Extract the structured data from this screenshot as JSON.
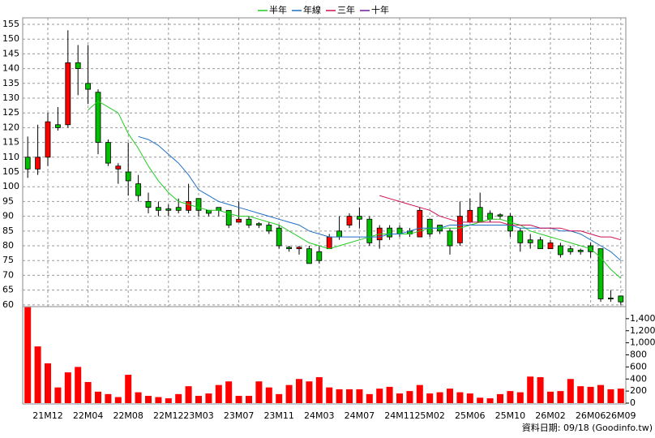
{
  "chart_data": {
    "type": "candlestick",
    "categories": [
      null,
      null,
      "21M12",
      null,
      null,
      null,
      "22M04",
      null,
      null,
      null,
      "22M08",
      null,
      null,
      null,
      "22M12",
      null,
      null,
      "23M03",
      null,
      null,
      null,
      "23M07",
      null,
      null,
      null,
      "23M11",
      null,
      null,
      null,
      "24M03",
      null,
      null,
      null,
      "24M07",
      null,
      null,
      null,
      "24M11",
      null,
      null,
      "25M02",
      null,
      null,
      null,
      "25M06",
      null,
      null,
      null,
      "25M10",
      null,
      null,
      null,
      "26M02",
      null,
      null,
      null,
      "26M06",
      null,
      null,
      "26M09"
    ],
    "open": [
      110,
      106,
      110,
      121,
      121,
      142,
      135,
      132,
      115,
      106,
      105,
      101,
      95,
      93,
      92.5,
      93,
      92,
      96,
      92,
      93,
      92,
      88,
      89,
      87.5,
      87,
      86,
      79.5,
      79,
      79,
      78,
      79,
      85,
      87,
      90,
      89,
      82,
      86,
      86,
      85,
      83,
      89,
      87,
      85,
      81,
      88,
      93,
      91,
      90.5,
      90,
      85,
      82,
      82,
      79,
      80,
      79,
      78.5,
      80,
      79,
      62.3,
      63
    ],
    "high": [
      117,
      121,
      125,
      127,
      153,
      148,
      148,
      133,
      116,
      108,
      115,
      104,
      98,
      95,
      94,
      96,
      101,
      96,
      92,
      93,
      92,
      95,
      90,
      88,
      88,
      87,
      80,
      80,
      80,
      80,
      84,
      90,
      91,
      93,
      90,
      87,
      87,
      87,
      86,
      93,
      89,
      87,
      86,
      95,
      96,
      98,
      92,
      91,
      91,
      86,
      84,
      83,
      82,
      81,
      80,
      79,
      81,
      79,
      65,
      63
    ],
    "low": [
      103,
      104,
      107,
      119,
      120,
      131,
      128,
      111,
      107,
      101,
      97,
      95,
      91,
      90,
      90,
      91,
      91,
      90,
      90,
      90,
      86,
      88,
      86,
      86,
      84,
      79,
      78,
      77,
      74,
      74,
      79,
      82,
      86,
      86,
      80,
      79,
      82,
      83,
      83,
      83,
      83,
      84,
      77,
      80,
      88,
      88,
      88,
      89,
      83,
      78,
      79,
      79,
      79,
      76,
      77,
      77,
      76,
      61,
      61,
      60
    ],
    "close": [
      106,
      110,
      122,
      120,
      142,
      140,
      133,
      115,
      108,
      107,
      102,
      97,
      93,
      92,
      92,
      92,
      95,
      92,
      91,
      92,
      87,
      89,
      87,
      87,
      85,
      80,
      79,
      79.5,
      74,
      75,
      83,
      83,
      90,
      89,
      81,
      86,
      83,
      84,
      84,
      92,
      84,
      85,
      80,
      90,
      92,
      88,
      89,
      90,
      85,
      81,
      81,
      79,
      81,
      77,
      78,
      78,
      78,
      62,
      62,
      61
    ],
    "up_color": "#ff0000",
    "down_color": "#00c000",
    "series": [
      {
        "name": "半年",
        "color": "#22cc22",
        "values": [
          null,
          null,
          null,
          null,
          null,
          null,
          126,
          129,
          127,
          125,
          118,
          113,
          107,
          102,
          98,
          95,
          94,
          93,
          92,
          92,
          91,
          90,
          90,
          89,
          88,
          87,
          85,
          83,
          81,
          80,
          79,
          80,
          81,
          82,
          83,
          84,
          84,
          84,
          84,
          85,
          86,
          86,
          86,
          86,
          87,
          88,
          89,
          89,
          88,
          87,
          85,
          84,
          83,
          82,
          81,
          80,
          79,
          76,
          72,
          69
        ]
      },
      {
        "name": "年線",
        "color": "#1f6fc5",
        "values": [
          null,
          null,
          null,
          null,
          null,
          null,
          null,
          null,
          null,
          null,
          null,
          117,
          116,
          114,
          111,
          108,
          104,
          99,
          97,
          95,
          94,
          93,
          92,
          91,
          90,
          89,
          88,
          87,
          85,
          84,
          83,
          83,
          83,
          83,
          83,
          83,
          84,
          84,
          85,
          86,
          86,
          86,
          87,
          87,
          87,
          87,
          87,
          87,
          87,
          86,
          86,
          86,
          86,
          85,
          85,
          84,
          82,
          80,
          78,
          75
        ]
      },
      {
        "name": "三年",
        "color": "#cc1155",
        "values": [
          null,
          null,
          null,
          null,
          null,
          null,
          null,
          null,
          null,
          null,
          null,
          null,
          null,
          null,
          null,
          null,
          null,
          null,
          null,
          null,
          null,
          null,
          null,
          null,
          null,
          null,
          null,
          null,
          null,
          null,
          null,
          null,
          null,
          null,
          null,
          97,
          96,
          95,
          94,
          93,
          92,
          90,
          89,
          88,
          88,
          88,
          88,
          88,
          87,
          87,
          87,
          86,
          86,
          86,
          85,
          85,
          84,
          83,
          83,
          82
        ]
      },
      {
        "name": "十年",
        "color": "#6a1b9a",
        "values": [
          null,
          null,
          null,
          null,
          null,
          null,
          null,
          null,
          null,
          null,
          null,
          null,
          null,
          null,
          null,
          null,
          null,
          null,
          null,
          null,
          null,
          null,
          null,
          null,
          null,
          null,
          null,
          null,
          null,
          null,
          null,
          null,
          null,
          null,
          null,
          null,
          null,
          null,
          null,
          null,
          null,
          null,
          null,
          null,
          null,
          null,
          null,
          null,
          null,
          null,
          null,
          null,
          null,
          null,
          null,
          null,
          null,
          null,
          null,
          null
        ]
      }
    ],
    "ylim": [
      59.4,
      157.2
    ],
    "yticks": [
      60,
      65,
      70,
      75,
      80,
      85,
      90,
      95,
      100,
      105,
      110,
      115,
      120,
      125,
      130,
      135,
      140,
      145,
      150,
      155
    ],
    "grid": true,
    "volume": {
      "type": "bar",
      "color": "#ff0000",
      "values": [
        1590,
        940,
        660,
        260,
        510,
        600,
        350,
        190,
        150,
        100,
        470,
        180,
        120,
        100,
        80,
        150,
        280,
        120,
        160,
        300,
        360,
        120,
        120,
        360,
        260,
        150,
        300,
        400,
        360,
        430,
        260,
        230,
        230,
        230,
        150,
        240,
        270,
        160,
        200,
        300,
        160,
        180,
        240,
        180,
        160,
        90,
        80,
        150,
        200,
        180,
        440,
        430,
        190,
        200,
        400,
        280,
        270,
        300,
        230,
        240
      ],
      "ylim": [
        0,
        1600
      ],
      "yticks": [
        0,
        200,
        400,
        600,
        800,
        {
          "value": 1000,
          "label": "1,000"
        },
        {
          "value": 1200,
          "label": "1,200"
        },
        {
          "value": 1400,
          "label": "1,400"
        }
      ]
    },
    "source": "資料日期: 09/18  (Goodinfo.tw)"
  }
}
